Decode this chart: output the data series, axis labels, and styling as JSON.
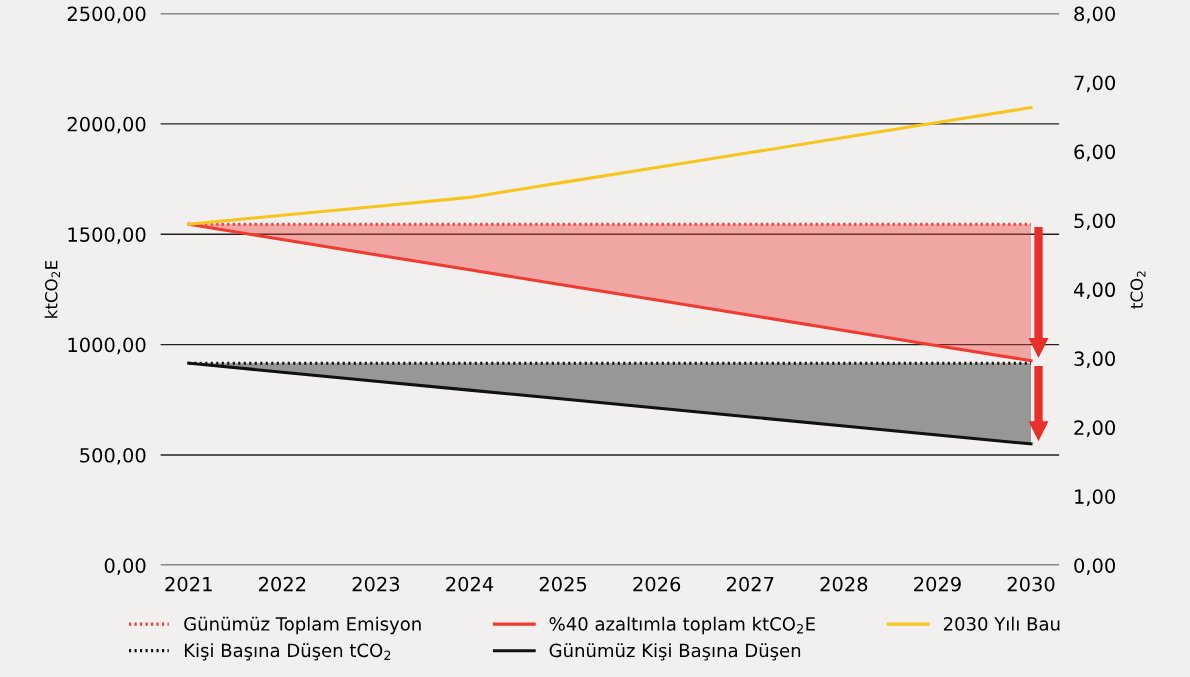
{
  "chart_data": {
    "type": "line",
    "ylabel": "ktCO$_{2}$E",
    "y2label": "tCO$_{2}$",
    "categories": [
      "2021",
      "2022",
      "2023",
      "2024",
      "2025",
      "2026",
      "2027",
      "2028",
      "2029",
      "2030"
    ],
    "series": [
      {
        "name": "Günümüz Toplam Emisyon",
        "color": "#f03a32",
        "line_style": "dotted",
        "values": [
          1545,
          1545,
          1545,
          1545,
          1545,
          1545,
          1545,
          1545,
          1545,
          1545
        ]
      },
      {
        "name": "%40 azaltımla toplam ktCO$_{2}$E",
        "color": "#f03a32",
        "line_style": "solid",
        "values": [
          1545,
          1476,
          1407,
          1339,
          1270,
          1202,
          1133,
          1064,
          995,
          927
        ],
        "lower": [
          1545,
          1476,
          1407,
          1339,
          1270,
          1202,
          1133,
          1064,
          995,
          927
        ],
        "upper": [
          1545,
          1545,
          1545,
          1545,
          1545,
          1545,
          1545,
          1545,
          1545,
          1545
        ]
      },
      {
        "name": "2030 Yılı Bau",
        "color": "#f7c51e",
        "line_style": "solid",
        "values": [
          1545,
          1586,
          1626,
          1667,
          1735,
          1802,
          1870,
          1938,
          2006,
          2074
        ]
      },
      {
        "name": "Kişi Başına Düşen tCO$_{2}$",
        "color": "#111111",
        "line_style": "dotted",
        "axis": "y2",
        "values": [
          2.93,
          2.93,
          2.93,
          2.93,
          2.93,
          2.93,
          2.93,
          2.93,
          2.93,
          2.93
        ]
      },
      {
        "name": "Günümüz Kişi Başına Düşen",
        "color": "#111111",
        "line_style": "solid",
        "axis": "y2",
        "values": [
          2.93,
          2.8,
          2.67,
          2.54,
          2.41,
          2.28,
          2.15,
          2.02,
          1.89,
          1.76
        ],
        "lower": [
          2.93,
          2.8,
          2.67,
          2.54,
          2.41,
          2.28,
          2.15,
          2.02,
          1.89,
          1.76
        ],
        "upper": [
          2.93,
          2.93,
          2.93,
          2.93,
          2.93,
          2.93,
          2.93,
          2.93,
          2.93,
          2.93
        ]
      }
    ],
    "ylim": [
      0,
      2500
    ],
    "yticks": [
      {
        "value": 0,
        "label": "0,00"
      },
      {
        "value": 500,
        "label": "500,00"
      },
      {
        "value": 1000,
        "label": "1000,00"
      },
      {
        "value": 1500,
        "label": "1500,00"
      },
      {
        "value": 2000,
        "label": "2000,00"
      },
      {
        "value": 2500,
        "label": "2500,00"
      }
    ],
    "y2lim": [
      0,
      8
    ],
    "y2ticks": [
      {
        "value": 0,
        "label": "0,00"
      },
      {
        "value": 1,
        "label": "1,00"
      },
      {
        "value": 2,
        "label": "2,00"
      },
      {
        "value": 3,
        "label": "3,00"
      },
      {
        "value": 4,
        "label": "4,00"
      },
      {
        "value": 5,
        "label": "5,00"
      },
      {
        "value": 6,
        "label": "6,00"
      },
      {
        "value": 7,
        "label": "7,00"
      },
      {
        "value": 8,
        "label": "8,00"
      }
    ],
    "grid": "y",
    "legend": "bottom",
    "marker": "none"
  }
}
